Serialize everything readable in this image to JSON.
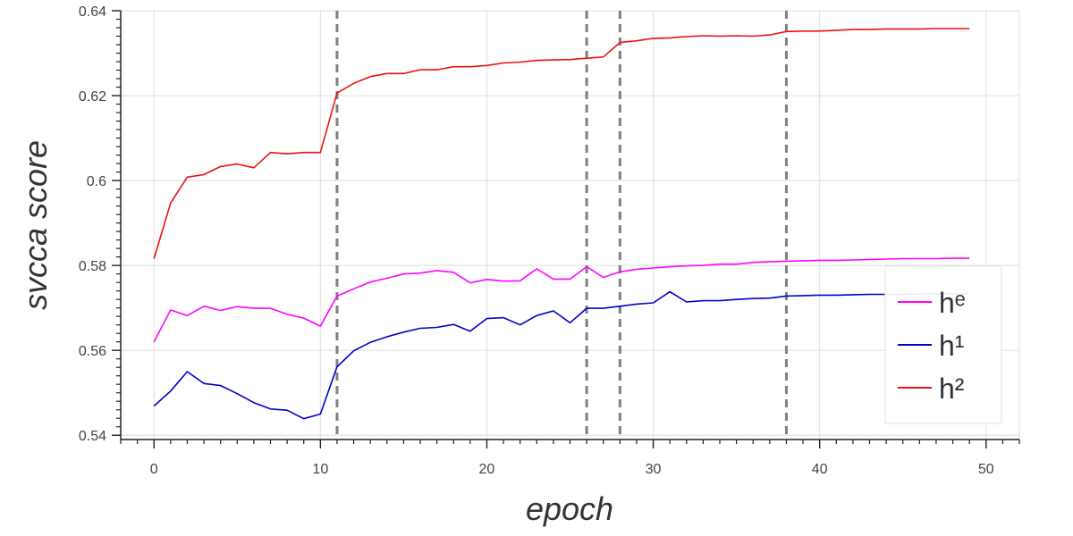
{
  "chart_data": {
    "type": "line",
    "xlabel": "epoch",
    "ylabel": "svcca score",
    "xlim": [
      -2,
      52
    ],
    "ylim": [
      0.539,
      0.64
    ],
    "x_ticks": [
      0,
      10,
      20,
      30,
      40,
      50
    ],
    "x_tick_labels": [
      "0",
      "10",
      "20",
      "30",
      "40",
      "50"
    ],
    "y_ticks": [
      0.54,
      0.56,
      0.58,
      0.6,
      0.62,
      0.64
    ],
    "y_tick_labels": [
      "0.54",
      "0.56",
      "0.58",
      "0.6",
      "0.62",
      "0.64"
    ],
    "grid": true,
    "legend_position": "right",
    "vlines": [
      11,
      26,
      28,
      38
    ],
    "vline_color": "#808080",
    "x": [
      0,
      1,
      2,
      3,
      4,
      5,
      6,
      7,
      8,
      9,
      10,
      11,
      12,
      13,
      14,
      15,
      16,
      17,
      18,
      19,
      20,
      21,
      22,
      23,
      24,
      25,
      26,
      27,
      28,
      29,
      30,
      31,
      32,
      33,
      34,
      35,
      36,
      37,
      38,
      39,
      40,
      41,
      42,
      43,
      44,
      45,
      46,
      47,
      48,
      49
    ],
    "series": [
      {
        "name": "hᵉ",
        "color": "#ff00ff",
        "values": [
          0.562,
          0.5695,
          0.5682,
          0.5704,
          0.5694,
          0.5703,
          0.5699,
          0.5699,
          0.5685,
          0.5676,
          0.5657,
          0.5728,
          0.5745,
          0.5761,
          0.577,
          0.578,
          0.5782,
          0.5788,
          0.5784,
          0.5759,
          0.5767,
          0.5763,
          0.5764,
          0.5792,
          0.5768,
          0.5768,
          0.5797,
          0.5772,
          0.5785,
          0.5791,
          0.5794,
          0.5797,
          0.5799,
          0.58,
          0.5803,
          0.5803,
          0.5807,
          0.5809,
          0.581,
          0.5811,
          0.5812,
          0.5812,
          0.5813,
          0.5814,
          0.5815,
          0.5816,
          0.5816,
          0.5816,
          0.5817,
          0.5817
        ]
      },
      {
        "name": "h¹",
        "color": "#0000cc",
        "values": [
          0.5469,
          0.5504,
          0.555,
          0.5522,
          0.5517,
          0.5498,
          0.5477,
          0.5462,
          0.5459,
          0.5439,
          0.545,
          0.5561,
          0.5599,
          0.5619,
          0.5632,
          0.5643,
          0.5652,
          0.5654,
          0.5661,
          0.5645,
          0.5675,
          0.5677,
          0.566,
          0.5682,
          0.5693,
          0.5665,
          0.5699,
          0.5699,
          0.5704,
          0.5709,
          0.5712,
          0.5738,
          0.5714,
          0.5717,
          0.5717,
          0.572,
          0.5722,
          0.5723,
          0.5728,
          0.5729,
          0.573,
          0.573,
          0.5731,
          0.5732,
          0.5732,
          0.5732,
          0.5733,
          0.5733,
          0.5733,
          0.5733
        ]
      },
      {
        "name": "h²",
        "color": "#ee1111",
        "values": [
          0.5816,
          0.5947,
          0.6008,
          0.6014,
          0.6033,
          0.6039,
          0.603,
          0.6066,
          0.6063,
          0.6066,
          0.6066,
          0.6206,
          0.6229,
          0.6245,
          0.6252,
          0.6252,
          0.6261,
          0.6261,
          0.6268,
          0.6268,
          0.6271,
          0.6277,
          0.6279,
          0.6283,
          0.6284,
          0.6285,
          0.6288,
          0.6291,
          0.6325,
          0.6329,
          0.6335,
          0.6336,
          0.6339,
          0.6341,
          0.634,
          0.6341,
          0.634,
          0.6343,
          0.6351,
          0.6352,
          0.6352,
          0.6354,
          0.6356,
          0.6356,
          0.6357,
          0.6357,
          0.6357,
          0.6358,
          0.6358,
          0.6358
        ]
      }
    ]
  }
}
